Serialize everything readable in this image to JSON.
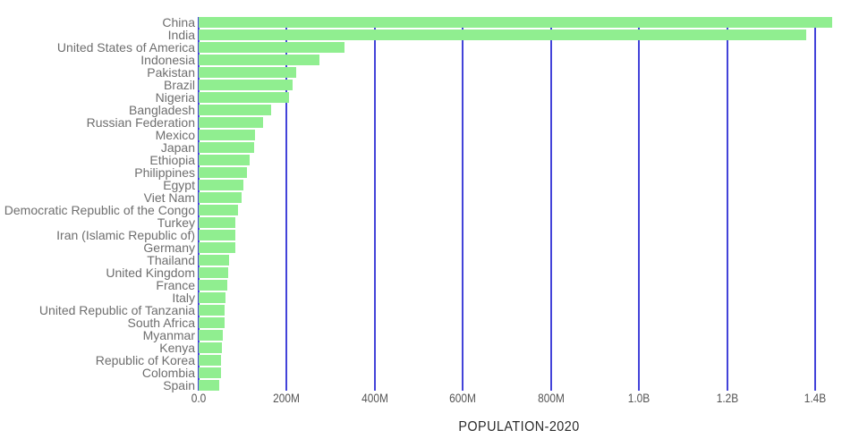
{
  "chart_data": {
    "type": "bar",
    "orientation": "horizontal",
    "title": "POPULATION-2020",
    "xlabel": "POPULATION-2020",
    "ylabel": "",
    "categories": [
      "China",
      "India",
      "United States of America",
      "Indonesia",
      "Pakistan",
      "Brazil",
      "Nigeria",
      "Bangladesh",
      "Russian Federation",
      "Mexico",
      "Japan",
      "Ethiopia",
      "Philippines",
      "Egypt",
      "Viet Nam",
      "Democratic Republic of the Congo",
      "Turkey",
      "Iran (Islamic Republic of)",
      "Germany",
      "Thailand",
      "United Kingdom",
      "France",
      "Italy",
      "United Republic of Tanzania",
      "South Africa",
      "Myanmar",
      "Kenya",
      "Republic of Korea",
      "Colombia",
      "Spain"
    ],
    "values_millions": [
      1439.3,
      1380.0,
      331.0,
      273.5,
      220.9,
      212.6,
      206.1,
      164.7,
      145.9,
      128.9,
      126.5,
      115.0,
      109.6,
      102.3,
      97.3,
      89.6,
      84.3,
      84.0,
      83.8,
      69.8,
      67.9,
      65.3,
      60.5,
      59.7,
      59.3,
      54.4,
      53.8,
      51.3,
      50.9,
      46.8
    ],
    "x_ticks": [
      {
        "label": "0.0",
        "value": 0
      },
      {
        "label": "200M",
        "value": 200
      },
      {
        "label": "400M",
        "value": 400
      },
      {
        "label": "600M",
        "value": 600
      },
      {
        "label": "800M",
        "value": 800
      },
      {
        "label": "1.0B",
        "value": 1000
      },
      {
        "label": "1.2B",
        "value": 1200
      },
      {
        "label": "1.4B",
        "value": 1400
      }
    ],
    "xlim_millions": [
      0,
      1455
    ],
    "grid": true,
    "legend": false,
    "colors": {
      "bar": "#90ee90",
      "gridline": "#4343d9",
      "category_label": "#6e6e6e",
      "tick_label": "#545454",
      "title": "#2b2b2b",
      "background": "#ffffff"
    }
  }
}
